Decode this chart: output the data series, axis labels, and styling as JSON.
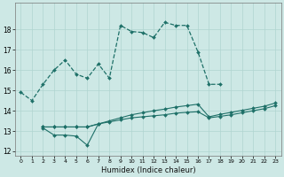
{
  "xlabel": "Humidex (Indice chaleur)",
  "x_ticks": [
    0,
    1,
    2,
    3,
    4,
    5,
    6,
    7,
    8,
    9,
    10,
    11,
    12,
    13,
    14,
    15,
    16,
    17,
    18,
    19,
    20,
    21,
    22,
    23
  ],
  "ylim": [
    11.8,
    19.3
  ],
  "yticks": [
    12,
    13,
    14,
    15,
    16,
    17,
    18
  ],
  "bg_color": "#cde8e5",
  "grid_color": "#b0d4d0",
  "line_color": "#1e7068",
  "series_main_x": [
    0,
    1,
    2,
    3,
    4,
    5,
    6,
    7,
    8,
    9,
    10,
    11,
    12,
    13,
    14,
    15,
    16,
    17,
    18
  ],
  "series_main_y": [
    14.9,
    14.5,
    15.3,
    16.0,
    16.5,
    15.8,
    15.6,
    16.3,
    15.6,
    18.2,
    17.9,
    17.85,
    17.6,
    18.35,
    18.2,
    18.2,
    16.9,
    15.3,
    15.3
  ],
  "series_flat1_x": [
    2,
    3,
    4,
    5,
    6,
    7,
    8,
    9,
    10,
    11,
    12,
    13,
    14,
    15,
    16,
    17,
    18,
    19,
    20,
    21,
    22,
    23
  ],
  "series_flat1_y": [
    13.2,
    13.2,
    13.2,
    13.2,
    13.2,
    13.35,
    13.45,
    13.55,
    13.65,
    13.7,
    13.75,
    13.8,
    13.88,
    13.92,
    13.95,
    13.65,
    13.72,
    13.8,
    13.9,
    14.0,
    14.1,
    14.25
  ],
  "series_flat2_x": [
    2,
    3,
    4,
    5,
    6,
    7,
    8,
    9,
    10,
    11,
    12,
    13,
    14,
    15,
    16,
    17,
    18,
    19,
    20,
    21,
    22,
    23
  ],
  "series_flat2_y": [
    13.2,
    13.2,
    13.2,
    13.2,
    13.2,
    13.35,
    13.5,
    13.65,
    13.8,
    13.9,
    14.0,
    14.08,
    14.18,
    14.25,
    14.32,
    13.7,
    13.82,
    13.92,
    14.02,
    14.12,
    14.22,
    14.38
  ],
  "series_dip_x": [
    2,
    3,
    4,
    5,
    6,
    7
  ],
  "series_dip_y": [
    13.15,
    12.8,
    12.8,
    12.75,
    12.3,
    13.35
  ]
}
